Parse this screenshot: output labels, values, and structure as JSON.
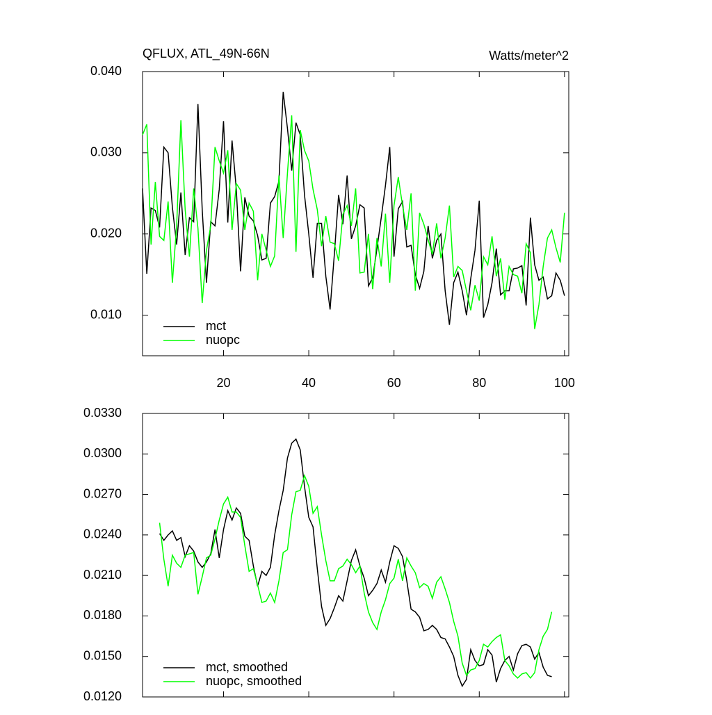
{
  "chart_data": [
    {
      "type": "line",
      "title": "QFLUX, ATL_49N-66N",
      "units_label": "Watts/meter^2",
      "x": [
        1,
        2,
        3,
        4,
        5,
        6,
        7,
        8,
        9,
        10,
        11,
        12,
        13,
        14,
        15,
        16,
        17,
        18,
        19,
        20,
        21,
        22,
        23,
        24,
        25,
        26,
        27,
        28,
        29,
        30,
        31,
        32,
        33,
        34,
        35,
        36,
        37,
        38,
        39,
        40,
        41,
        42,
        43,
        44,
        45,
        46,
        47,
        48,
        49,
        50,
        51,
        52,
        53,
        54,
        55,
        56,
        57,
        58,
        59,
        60,
        61,
        62,
        63,
        64,
        65,
        66,
        67,
        68,
        69,
        70,
        71,
        72,
        73,
        74,
        75,
        76,
        77,
        78,
        79,
        80,
        81,
        82,
        83,
        84,
        85,
        86,
        87,
        88,
        89,
        90,
        91,
        92,
        93,
        94,
        95,
        96,
        97,
        98,
        99,
        100
      ],
      "series": [
        {
          "name": "mct",
          "color": "#000000",
          "values": [
            0.0256,
            0.0151,
            0.0232,
            0.0229,
            0.0208,
            0.0307,
            0.03,
            0.0233,
            0.0187,
            0.0251,
            0.0174,
            0.022,
            0.0215,
            0.036,
            0.023,
            0.014,
            0.0215,
            0.021,
            0.0255,
            0.0339,
            0.0214,
            0.0315,
            0.0255,
            0.0154,
            0.0245,
            0.0222,
            0.0216,
            0.0198,
            0.0168,
            0.017,
            0.0238,
            0.0246,
            0.0265,
            0.0375,
            0.033,
            0.0278,
            0.0337,
            0.0322,
            0.0248,
            0.02,
            0.0146,
            0.0213,
            0.0213,
            0.0148,
            0.0107,
            0.0175,
            0.0248,
            0.0212,
            0.0272,
            0.0194,
            0.021,
            0.0236,
            0.0232,
            0.0136,
            0.0146,
            0.0182,
            0.022,
            0.026,
            0.0307,
            0.0172,
            0.0231,
            0.024,
            0.0184,
            0.0186,
            0.015,
            0.0133,
            0.0154,
            0.021,
            0.017,
            0.0192,
            0.02,
            0.013,
            0.0088,
            0.014,
            0.0153,
            0.013,
            0.01,
            0.0145,
            0.018,
            0.0241,
            0.0097,
            0.0113,
            0.014,
            0.0182,
            0.0125,
            0.013,
            0.013,
            0.0157,
            0.0158,
            0.0161,
            0.0112,
            0.022,
            0.0162,
            0.0143,
            0.0147,
            0.012,
            0.0124,
            0.0152,
            0.0143,
            0.0124
          ]
        },
        {
          "name": "nuopc",
          "color": "#00ff00",
          "values": [
            0.0322,
            0.0335,
            0.0187,
            0.0264,
            0.0197,
            0.0192,
            0.024,
            0.014,
            0.021,
            0.034,
            0.023,
            0.0172,
            0.0256,
            0.0207,
            0.0115,
            0.018,
            0.021,
            0.0307,
            0.029,
            0.0275,
            0.0303,
            0.0205,
            0.0262,
            0.0254,
            0.0205,
            0.0238,
            0.0228,
            0.0143,
            0.02,
            0.018,
            0.016,
            0.0173,
            0.0272,
            0.0195,
            0.0275,
            0.0346,
            0.0178,
            0.0328,
            0.0303,
            0.029,
            0.0255,
            0.023,
            0.0185,
            0.0222,
            0.019,
            0.0188,
            0.0167,
            0.0224,
            0.0235,
            0.021,
            0.0256,
            0.0152,
            0.0153,
            0.02,
            0.0132,
            0.0195,
            0.016,
            0.0225,
            0.014,
            0.0235,
            0.027,
            0.0235,
            0.0205,
            0.025,
            0.013,
            0.0226,
            0.0212,
            0.0193,
            0.0175,
            0.0213,
            0.017,
            0.0195,
            0.0235,
            0.0147,
            0.016,
            0.0155,
            0.013,
            0.0106,
            0.0137,
            0.0118,
            0.0172,
            0.0162,
            0.0197,
            0.0148,
            0.017,
            0.0119,
            0.016,
            0.015,
            0.0148,
            0.0127,
            0.0188,
            0.0177,
            0.0083,
            0.0113,
            0.016,
            0.0195,
            0.0205,
            0.0183,
            0.0165,
            0.0226
          ]
        }
      ],
      "xlim": [
        1,
        101
      ],
      "xticks": [
        20,
        40,
        60,
        80,
        100
      ],
      "ylim": [
        0.005,
        0.04
      ],
      "yticks": [
        {
          "value": 0.01,
          "label": "0.010"
        },
        {
          "value": 0.02,
          "label": "0.020"
        },
        {
          "value": 0.03,
          "label": "0.030"
        },
        {
          "value": 0.04,
          "label": "0.040"
        }
      ],
      "legend": "lower left"
    },
    {
      "type": "line",
      "x": [
        5,
        6,
        7,
        8,
        9,
        10,
        11,
        12,
        13,
        14,
        15,
        16,
        17,
        18,
        19,
        20,
        21,
        22,
        23,
        24,
        25,
        26,
        27,
        28,
        29,
        30,
        31,
        32,
        33,
        34,
        35,
        36,
        37,
        38,
        39,
        40,
        41,
        42,
        43,
        44,
        45,
        46,
        47,
        48,
        49,
        50,
        51,
        52,
        53,
        54,
        55,
        56,
        57,
        58,
        59,
        60,
        61,
        62,
        63,
        64,
        65,
        66,
        67,
        68,
        69,
        70,
        71,
        72,
        73,
        74,
        75,
        76,
        77,
        78,
        79,
        80,
        81,
        82,
        83,
        84,
        85,
        86,
        87,
        88,
        89,
        90,
        91,
        92,
        93,
        94,
        95,
        96,
        97
      ],
      "series": [
        {
          "name": "mct, smoothed",
          "color": "#000000",
          "values": [
            0.0241,
            0.0236,
            0.024,
            0.0243,
            0.0236,
            0.0238,
            0.0224,
            0.0232,
            0.0228,
            0.022,
            0.0216,
            0.022,
            0.0226,
            0.0244,
            0.0223,
            0.0244,
            0.0258,
            0.0251,
            0.026,
            0.0256,
            0.0239,
            0.0236,
            0.0217,
            0.0202,
            0.0213,
            0.021,
            0.0216,
            0.024,
            0.0258,
            0.0273,
            0.0297,
            0.0308,
            0.0311,
            0.0303,
            0.0276,
            0.0253,
            0.0246,
            0.0215,
            0.0187,
            0.0173,
            0.0178,
            0.0186,
            0.0195,
            0.0191,
            0.0206,
            0.0221,
            0.0229,
            0.0217,
            0.0208,
            0.0195,
            0.0199,
            0.0204,
            0.0214,
            0.0205,
            0.022,
            0.0232,
            0.023,
            0.0224,
            0.0206,
            0.0185,
            0.0183,
            0.0179,
            0.0169,
            0.017,
            0.0173,
            0.017,
            0.0164,
            0.0163,
            0.0157,
            0.015,
            0.0136,
            0.0128,
            0.0133,
            0.0155,
            0.0147,
            0.0143,
            0.0144,
            0.0155,
            0.0151,
            0.0131,
            0.0141,
            0.0147,
            0.015,
            0.014,
            0.0152,
            0.0158,
            0.0159,
            0.0157,
            0.0148,
            0.0153,
            0.0142,
            0.0136,
            0.0135
          ]
        },
        {
          "name": "nuopc, smoothed",
          "color": "#00ff00",
          "values": [
            0.0249,
            0.0222,
            0.0202,
            0.0225,
            0.0219,
            0.0216,
            0.0225,
            0.0226,
            0.0227,
            0.0196,
            0.0209,
            0.0223,
            0.0225,
            0.0237,
            0.0251,
            0.0263,
            0.0268,
            0.0257,
            0.0257,
            0.0253,
            0.0232,
            0.0213,
            0.0215,
            0.0203,
            0.019,
            0.0191,
            0.0197,
            0.019,
            0.0206,
            0.0227,
            0.0229,
            0.0255,
            0.0272,
            0.0273,
            0.0284,
            0.0276,
            0.0256,
            0.0261,
            0.024,
            0.0221,
            0.0206,
            0.0206,
            0.0215,
            0.0217,
            0.0222,
            0.0218,
            0.0212,
            0.0217,
            0.0197,
            0.0183,
            0.0175,
            0.017,
            0.0183,
            0.0192,
            0.0204,
            0.0208,
            0.0222,
            0.0206,
            0.0223,
            0.0217,
            0.0212,
            0.0201,
            0.0204,
            0.0202,
            0.0193,
            0.0205,
            0.0209,
            0.02,
            0.019,
            0.0176,
            0.0165,
            0.0145,
            0.0136,
            0.014,
            0.0141,
            0.0147,
            0.0159,
            0.0157,
            0.0161,
            0.0164,
            0.0166,
            0.0147,
            0.0143,
            0.0137,
            0.0134,
            0.0137,
            0.0138,
            0.0134,
            0.0138,
            0.0155,
            0.0165,
            0.017,
            0.0183
          ]
        }
      ],
      "xlim": [
        1,
        101
      ],
      "xticks": [
        20,
        40,
        60,
        80,
        100
      ],
      "ylim": [
        0.012,
        0.033
      ],
      "yticks": [
        {
          "value": 0.012,
          "label": "0.0120"
        },
        {
          "value": 0.015,
          "label": "0.0150"
        },
        {
          "value": 0.018,
          "label": "0.0180"
        },
        {
          "value": 0.021,
          "label": "0.0210"
        },
        {
          "value": 0.024,
          "label": "0.0240"
        },
        {
          "value": 0.027,
          "label": "0.0270"
        },
        {
          "value": 0.03,
          "label": "0.0300"
        },
        {
          "value": 0.033,
          "label": "0.0330"
        }
      ],
      "legend": "lower left"
    }
  ]
}
